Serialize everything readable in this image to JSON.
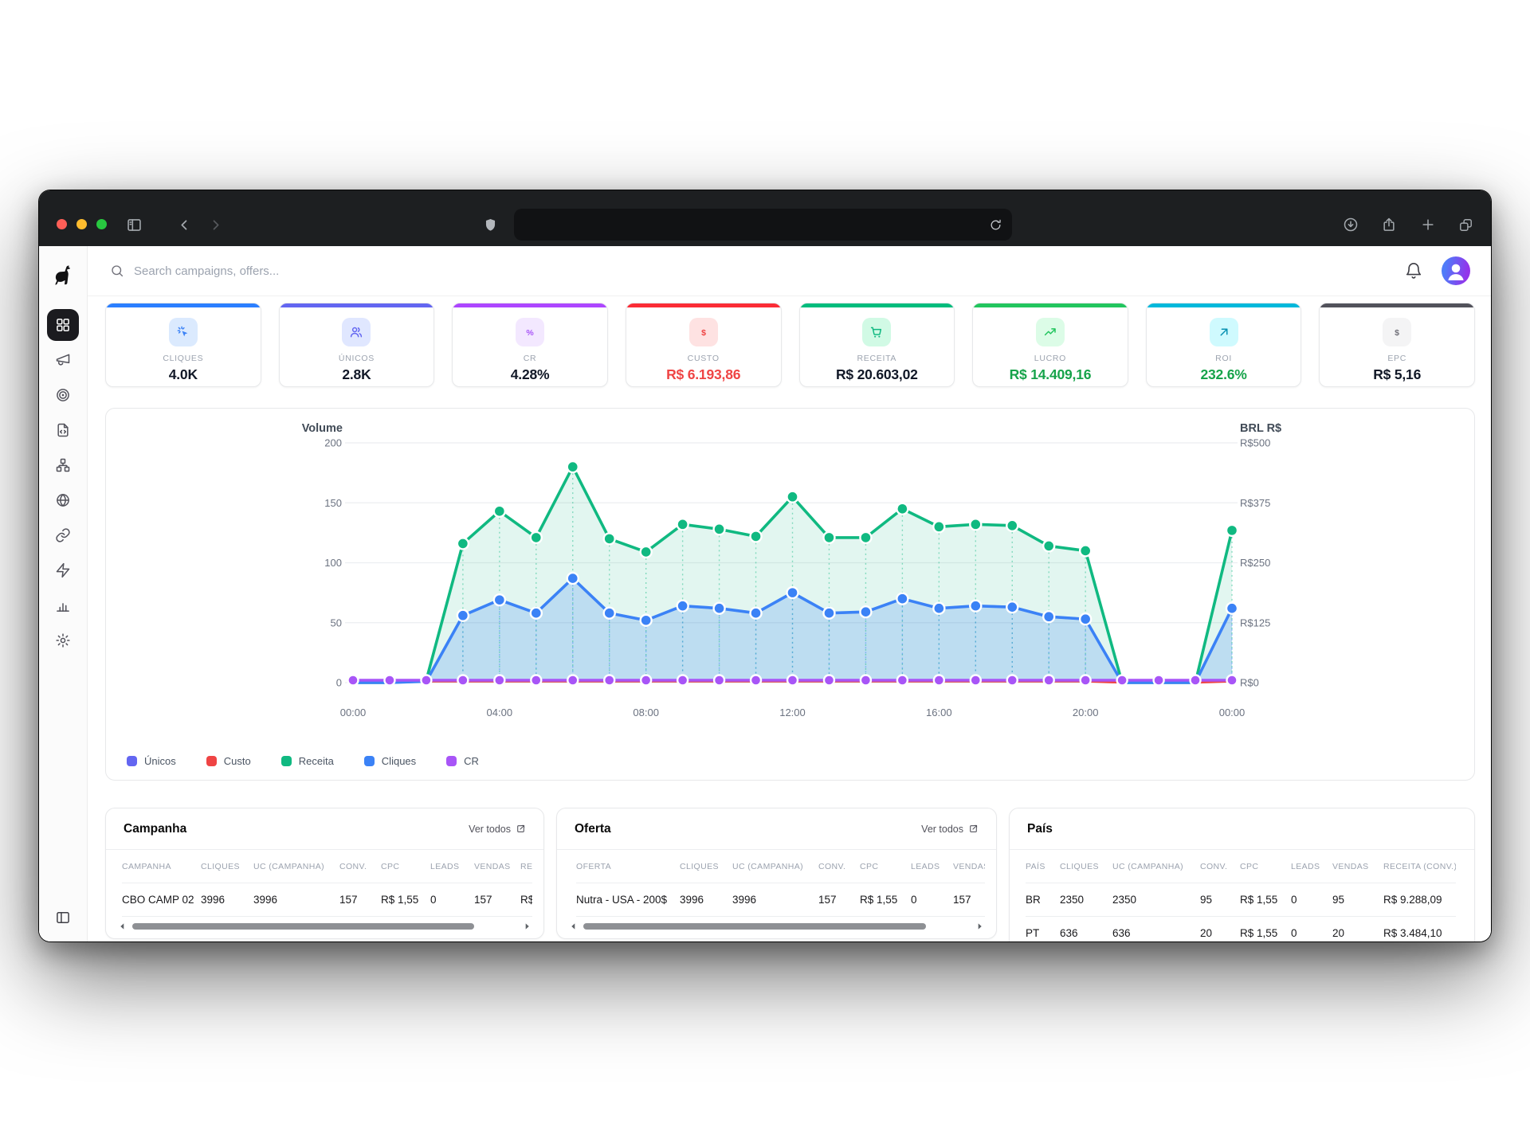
{
  "browser": {
    "url_value": "",
    "icons": [
      "sidebar-toggle-icon",
      "back-icon",
      "forward-icon",
      "shield-icon",
      "reload-icon",
      "download-icon",
      "share-icon",
      "new-tab-icon",
      "tabs-icon"
    ]
  },
  "app": {
    "logo_icon": "dog-logo",
    "search_placeholder": "Search campaigns, offers...",
    "header_icons": [
      "bell-icon",
      "user-avatar"
    ],
    "sidebar": {
      "items": [
        {
          "name": "dashboard",
          "icon": "dashboard",
          "active": true
        },
        {
          "name": "campaigns",
          "icon": "megaphone",
          "active": false
        },
        {
          "name": "offers",
          "icon": "target",
          "active": false
        },
        {
          "name": "landers",
          "icon": "file-code",
          "active": false
        },
        {
          "name": "flows",
          "icon": "flows",
          "active": false
        },
        {
          "name": "domains",
          "icon": "globe",
          "active": false
        },
        {
          "name": "links",
          "icon": "link",
          "active": false
        },
        {
          "name": "automations",
          "icon": "zap",
          "active": false
        },
        {
          "name": "reports",
          "icon": "bar-chart",
          "active": false
        },
        {
          "name": "settings",
          "icon": "gear",
          "active": false
        }
      ],
      "collapse_icon": "panel-left"
    }
  },
  "stat_cards": [
    {
      "label": "CLIQUES",
      "value": "4.0K",
      "accent": "#2b7fff",
      "icon": "cursor-click",
      "icon_bg": "#dbeafe",
      "icon_color": "#3b82f6",
      "value_color": "#111827"
    },
    {
      "label": "ÚNICOS",
      "value": "2.8K",
      "accent": "#6366f1",
      "icon": "users",
      "icon_bg": "#e0e7ff",
      "icon_color": "#6366f1",
      "value_color": "#111827"
    },
    {
      "label": "CR",
      "value": "4.28%",
      "accent": "#ad46ff",
      "icon": "percent",
      "icon_bg": "#f3e8ff",
      "icon_color": "#a855f7",
      "value_color": "#111827"
    },
    {
      "label": "CUSTO",
      "value": "R$ 6.193,86",
      "accent": "#fb2c36",
      "icon": "dollar",
      "icon_bg": "#fee2e2",
      "icon_color": "#ef4444",
      "value_color": "#ef4444"
    },
    {
      "label": "RECEITA",
      "value": "R$ 20.603,02",
      "accent": "#00bc7d",
      "icon": "cart",
      "icon_bg": "#d1fae5",
      "icon_color": "#10b981",
      "value_color": "#111827"
    },
    {
      "label": "LUCRO",
      "value": "R$ 14.409,16",
      "accent": "#22c55e",
      "icon": "trending-up",
      "icon_bg": "#dcfce7",
      "icon_color": "#22c55e",
      "value_color": "#16a34a"
    },
    {
      "label": "ROI",
      "value": "232.6%",
      "accent": "#00b8db",
      "icon": "arrow-up-right",
      "icon_bg": "#cffafe",
      "icon_color": "#0891b2",
      "value_color": "#16a34a"
    },
    {
      "label": "EPC",
      "value": "R$ 5,16",
      "accent": "#52525b",
      "icon": "dollar",
      "icon_bg": "#f4f4f5",
      "icon_color": "#71717a",
      "value_color": "#111827"
    }
  ],
  "chart_data": {
    "type": "line",
    "x_hours": [
      0,
      1,
      2,
      3,
      4,
      5,
      6,
      7,
      8,
      9,
      10,
      11,
      12,
      13,
      14,
      15,
      16,
      17,
      18,
      19,
      20,
      21,
      22,
      23,
      24
    ],
    "x_tick_hours": [
      0,
      4,
      8,
      12,
      16,
      20,
      24
    ],
    "x_tick_labels": [
      "00:00",
      "04:00",
      "08:00",
      "12:00",
      "16:00",
      "20:00",
      "00:00"
    ],
    "left_axis": {
      "title": "Volume",
      "ticks": [
        0,
        50,
        100,
        150,
        200
      ],
      "range": [
        0,
        200
      ]
    },
    "right_axis": {
      "title": "BRL R$",
      "ticks": [
        "R$0",
        "R$125",
        "R$250",
        "R$375",
        "R$500"
      ]
    },
    "grid": true,
    "legend_position": "bottom-left",
    "series": [
      {
        "name": "Únicos",
        "color": "#6366f1",
        "values": [
          0,
          0,
          1,
          56,
          69,
          58,
          87,
          58,
          52,
          64,
          62,
          58,
          75,
          58,
          59,
          70,
          62,
          64,
          63,
          55,
          53,
          0,
          0,
          0,
          62
        ]
      },
      {
        "name": "Custo",
        "color": "#ef4444",
        "values": [
          0,
          0,
          1,
          1,
          1,
          1,
          1,
          1,
          1,
          1,
          1,
          1,
          1,
          1,
          1,
          1,
          1,
          1,
          1,
          1,
          1,
          0,
          0,
          0,
          1
        ]
      },
      {
        "name": "Receita",
        "color": "#10b981",
        "values": [
          0,
          0,
          2,
          116,
          143,
          121,
          180,
          120,
          109,
          132,
          128,
          122,
          155,
          121,
          121,
          145,
          130,
          132,
          131,
          114,
          110,
          0,
          0,
          0,
          127
        ]
      },
      {
        "name": "Cliques",
        "color": "#3b82f6",
        "values": [
          0,
          0,
          1,
          56,
          69,
          58,
          87,
          58,
          52,
          64,
          62,
          58,
          75,
          58,
          59,
          70,
          62,
          64,
          63,
          55,
          53,
          0,
          0,
          0,
          62
        ]
      },
      {
        "name": "CR",
        "color": "#a855f7",
        "values": [
          2,
          2,
          2,
          2,
          2,
          2,
          2,
          2,
          2,
          2,
          2,
          2,
          2,
          2,
          2,
          2,
          2,
          2,
          2,
          2,
          2,
          2,
          2,
          2,
          2
        ]
      }
    ]
  },
  "tables": [
    {
      "title": "Campanha",
      "link_label": "Ver todos",
      "headers": [
        "CAMPANHA",
        "CLIQUES",
        "UC (CAMPANHA)",
        "CONV.",
        "CPC",
        "LEADS",
        "VENDAS",
        "RECEITA (CONV.)"
      ],
      "rows": [
        [
          "CBO CAMP 02",
          "3996",
          "3996",
          "157",
          "R$ 1,55",
          "0",
          "157",
          "R$"
        ]
      ],
      "scrollbar": true
    },
    {
      "title": "Oferta",
      "link_label": "Ver todos",
      "headers": [
        "OFERTA",
        "CLIQUES",
        "UC (CAMPANHA)",
        "CONV.",
        "CPC",
        "LEADS",
        "VENDAS"
      ],
      "rows": [
        [
          "Nutra - USA - 200$",
          "3996",
          "3996",
          "157",
          "R$ 1,55",
          "0",
          "157"
        ]
      ],
      "scrollbar": true
    },
    {
      "title": "País",
      "link_label": "",
      "headers": [
        "PAÍS",
        "CLIQUES",
        "UC (CAMPANHA)",
        "CONV.",
        "CPC",
        "LEADS",
        "VENDAS",
        "RECEITA (CONV.)"
      ],
      "rows": [
        [
          "BR",
          "2350",
          "2350",
          "95",
          "R$ 1,55",
          "0",
          "95",
          "R$ 9.288,09"
        ],
        [
          "PT",
          "636",
          "636",
          "20",
          "R$ 1,55",
          "0",
          "20",
          "R$ 3.484,10"
        ]
      ],
      "scrollbar": false
    }
  ]
}
